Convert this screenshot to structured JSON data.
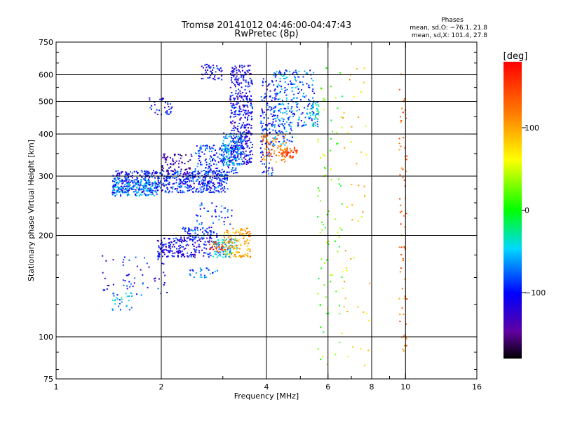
{
  "header": {
    "title_line1": "Tromsø 20141012 04:46:00-04:47:43",
    "title_line2": "RwPretec (8p)"
  },
  "phases_box": {
    "heading": "Phases",
    "line_o": "mean, sd,O: −76.1, 21.8",
    "line_x": "mean, sd,X: 101.4, 27.8"
  },
  "chart_data": {
    "type": "scatter",
    "xlabel": "Frequency [MHz]",
    "ylabel": "Stationary phase Virtual Height [km]",
    "x_scale": "log",
    "y_scale": "log",
    "xlim": [
      1,
      16
    ],
    "ylim": [
      75,
      750
    ],
    "x_ticks": [
      1,
      2,
      4,
      6,
      8,
      10,
      16
    ],
    "x_tick_labels": [
      "1",
      "2",
      "4",
      "6",
      "8",
      "10",
      "16"
    ],
    "x_minor_ticks": [
      3,
      5,
      7,
      9
    ],
    "y_ticks": [
      75,
      100,
      200,
      300,
      400,
      500,
      600,
      750
    ],
    "y_tick_labels": [
      "75",
      "100",
      "200",
      "300",
      "400",
      "500",
      "600",
      "750"
    ],
    "y_minor_ticks": [
      80,
      90,
      125,
      150,
      175,
      225,
      250,
      275,
      350,
      450,
      550,
      650,
      700
    ],
    "grid_x": [
      2,
      4,
      6,
      8,
      10
    ],
    "grid_y": [
      100,
      200,
      300,
      400,
      500,
      600
    ],
    "colorbar": {
      "label": "[deg]",
      "range": [
        -180,
        180
      ],
      "ticks": [
        100,
        0,
        -100
      ],
      "tick_labels": [
        "100",
        "0",
        "−100"
      ]
    },
    "clusters": [
      {
        "x0": 1.45,
        "x1": 3.1,
        "y0": 268,
        "y1": 312,
        "phase": -95,
        "n": 620
      },
      {
        "x0": 1.45,
        "x1": 1.95,
        "y0": 262,
        "y1": 292,
        "phase": -65,
        "n": 140
      },
      {
        "x0": 2.5,
        "x1": 3.3,
        "y0": 300,
        "y1": 372,
        "phase": -90,
        "n": 180
      },
      {
        "x0": 3.15,
        "x1": 3.65,
        "y0": 325,
        "y1": 640,
        "phase": -110,
        "n": 420
      },
      {
        "x0": 3.0,
        "x1": 3.45,
        "y0": 322,
        "y1": 405,
        "phase": -60,
        "n": 110
      },
      {
        "x0": 2.6,
        "x1": 3.0,
        "y0": 580,
        "y1": 645,
        "phase": -110,
        "n": 50
      },
      {
        "x0": 1.85,
        "x1": 2.15,
        "y0": 455,
        "y1": 515,
        "phase": -105,
        "n": 35
      },
      {
        "x0": 2.0,
        "x1": 2.45,
        "y0": 300,
        "y1": 350,
        "phase": -140,
        "n": 70
      },
      {
        "x0": 3.85,
        "x1": 4.2,
        "y0": 300,
        "y1": 600,
        "phase": -100,
        "n": 130
      },
      {
        "x0": 4.2,
        "x1": 4.75,
        "y0": 370,
        "y1": 620,
        "phase": -75,
        "n": 170
      },
      {
        "x0": 4.75,
        "x1": 5.5,
        "y0": 420,
        "y1": 620,
        "phase": -80,
        "n": 110
      },
      {
        "x0": 5.3,
        "x1": 5.65,
        "y0": 420,
        "y1": 500,
        "phase": -50,
        "n": 40
      },
      {
        "x0": 3.85,
        "x1": 4.6,
        "y0": 330,
        "y1": 400,
        "phase": 120,
        "n": 70
      },
      {
        "x0": 4.4,
        "x1": 4.9,
        "y0": 340,
        "y1": 365,
        "phase": 145,
        "n": 40
      },
      {
        "x0": 1.95,
        "x1": 2.8,
        "y0": 172,
        "y1": 198,
        "phase": -110,
        "n": 200
      },
      {
        "x0": 2.3,
        "x1": 2.9,
        "y0": 195,
        "y1": 212,
        "phase": -95,
        "n": 70
      },
      {
        "x0": 2.8,
        "x1": 3.3,
        "y0": 172,
        "y1": 195,
        "phase": -55,
        "n": 90
      },
      {
        "x0": 3.0,
        "x1": 3.6,
        "y0": 172,
        "y1": 210,
        "phase": 100,
        "n": 130
      },
      {
        "x0": 2.75,
        "x1": 3.0,
        "y0": 178,
        "y1": 192,
        "phase": 150,
        "n": 25
      },
      {
        "x0": 2.5,
        "x1": 3.2,
        "y0": 215,
        "y1": 250,
        "phase": -90,
        "n": 40
      },
      {
        "x0": 1.45,
        "x1": 1.65,
        "y0": 120,
        "y1": 135,
        "phase": -60,
        "n": 30
      },
      {
        "x0": 1.35,
        "x1": 2.1,
        "y0": 133,
        "y1": 175,
        "phase": -100,
        "n": 60
      },
      {
        "x0": 2.4,
        "x1": 2.9,
        "y0": 150,
        "y1": 160,
        "phase": -65,
        "n": 25
      },
      {
        "x0": 5.6,
        "x1": 6.6,
        "y0": 80,
        "y1": 640,
        "phase": 20,
        "n": 90
      },
      {
        "x0": 6.6,
        "x1": 7.9,
        "y0": 80,
        "y1": 640,
        "phase": 80,
        "n": 50
      },
      {
        "x0": 9.6,
        "x1": 10.1,
        "y0": 90,
        "y1": 660,
        "phase": 130,
        "n": 70
      }
    ]
  }
}
